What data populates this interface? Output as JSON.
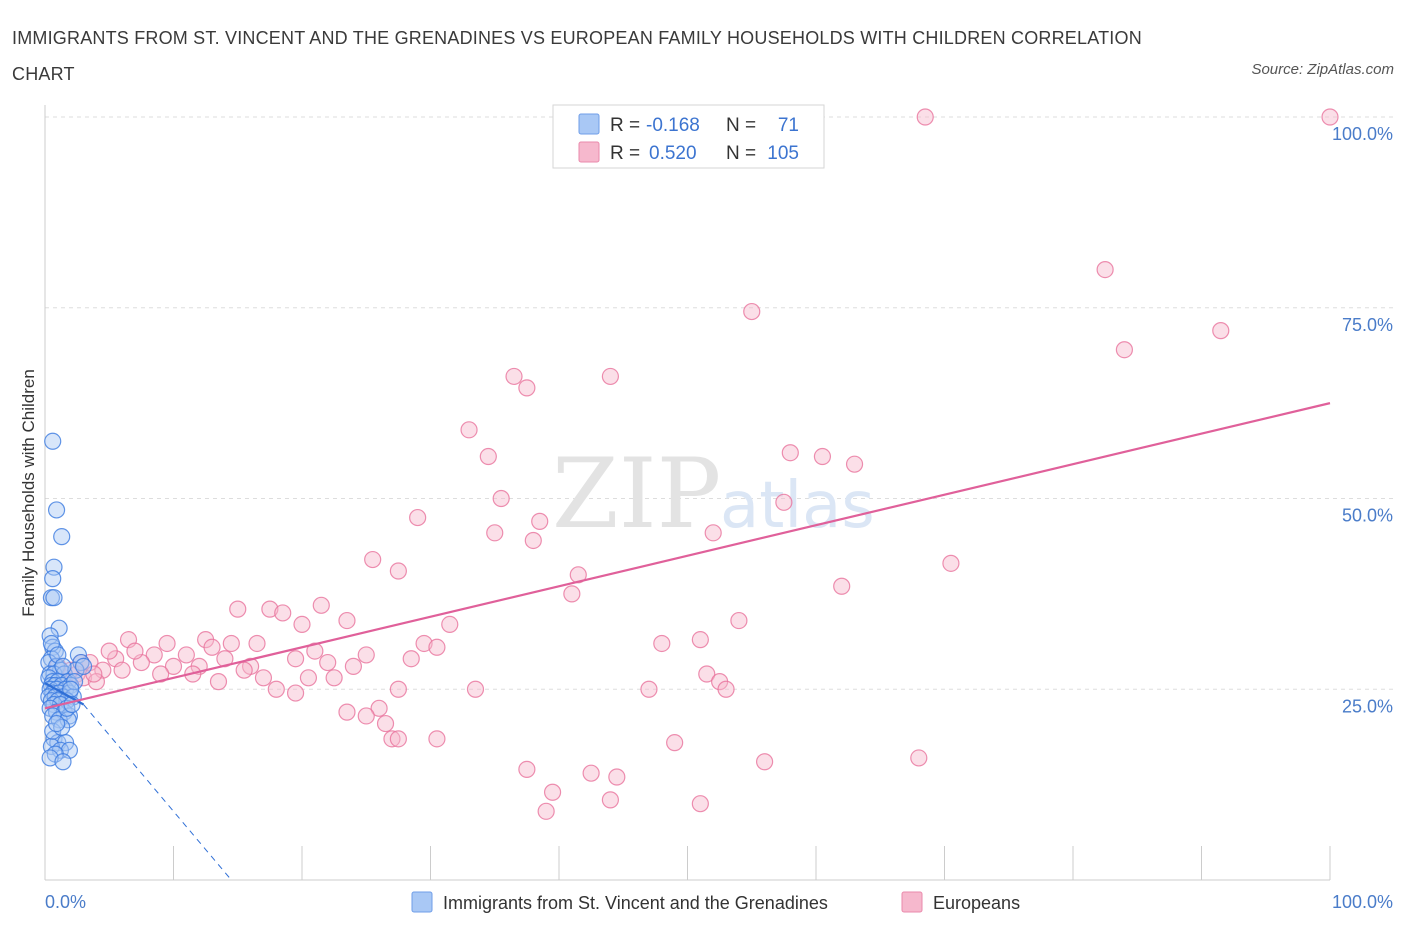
{
  "title": "IMMIGRANTS FROM ST. VINCENT AND THE GRENADINES VS EUROPEAN FAMILY HOUSEHOLDS WITH CHILDREN CORRELATION CHART",
  "source": "Source: ZipAtlas.com",
  "watermark": {
    "zip": "ZIP",
    "atlas": "atlas"
  },
  "colors": {
    "blue_fill": "#a9c8f5",
    "blue_stroke": "#3b7be0",
    "pink_fill": "#f6b8cd",
    "pink_stroke": "#e8739c",
    "blue_trend": "#2f6fd6",
    "pink_trend": "#e0609a",
    "tick_text": "#4a7cc9",
    "grid": "#dddddd"
  },
  "legend": {
    "r_label": "R =",
    "n_label": "N =",
    "rows": [
      {
        "series": "blue",
        "r": "-0.168",
        "n": "71"
      },
      {
        "series": "pink",
        "r": "0.520",
        "n": "105"
      }
    ]
  },
  "chart_data": {
    "type": "scatter",
    "title": "IMMIGRANTS FROM ST. VINCENT AND THE GRENADINES VS EUROPEAN FAMILY HOUSEHOLDS WITH CHILDREN CORRELATION CHART",
    "xlabel": "",
    "ylabel": "Family Households with Children",
    "xlim": [
      0,
      100
    ],
    "ylim": [
      0,
      100
    ],
    "x_tick_labels": {
      "left": "0.0%",
      "right": "100.0%"
    },
    "y_ticks": [
      {
        "value": 25,
        "label": "25.0%"
      },
      {
        "value": 50,
        "label": "50.0%"
      },
      {
        "value": 75,
        "label": "75.0%"
      },
      {
        "value": 100,
        "label": "100.0%"
      }
    ],
    "grid": true,
    "legend_position": "top-center",
    "series": [
      {
        "name": "Immigrants from St. Vincent and the Grenadines",
        "color": "blue",
        "points": [
          [
            0.6,
            57.5
          ],
          [
            0.9,
            48.5
          ],
          [
            1.3,
            45.0
          ],
          [
            0.7,
            41.0
          ],
          [
            0.6,
            39.5
          ],
          [
            0.5,
            37.0
          ],
          [
            0.7,
            37.0
          ],
          [
            1.1,
            33.0
          ],
          [
            0.4,
            32.0
          ],
          [
            0.6,
            30.5
          ],
          [
            0.8,
            30.0
          ],
          [
            0.5,
            29.0
          ],
          [
            0.3,
            28.5
          ],
          [
            0.9,
            28.0
          ],
          [
            1.2,
            27.5
          ],
          [
            0.4,
            27.0
          ],
          [
            0.7,
            27.0
          ],
          [
            1.5,
            27.0
          ],
          [
            0.3,
            26.5
          ],
          [
            0.6,
            26.0
          ],
          [
            1.0,
            26.0
          ],
          [
            1.8,
            26.0
          ],
          [
            0.5,
            25.5
          ],
          [
            0.8,
            25.5
          ],
          [
            1.3,
            25.5
          ],
          [
            2.0,
            25.5
          ],
          [
            0.4,
            25.0
          ],
          [
            0.9,
            25.0
          ],
          [
            1.6,
            25.0
          ],
          [
            0.6,
            24.5
          ],
          [
            1.1,
            24.5
          ],
          [
            1.9,
            24.5
          ],
          [
            0.3,
            24.0
          ],
          [
            0.8,
            24.0
          ],
          [
            1.4,
            24.0
          ],
          [
            2.2,
            24.0
          ],
          [
            0.5,
            23.5
          ],
          [
            1.0,
            23.5
          ],
          [
            1.7,
            23.5
          ],
          [
            0.7,
            23.0
          ],
          [
            1.2,
            23.0
          ],
          [
            0.4,
            22.5
          ],
          [
            0.9,
            22.0
          ],
          [
            1.5,
            22.0
          ],
          [
            0.6,
            21.5
          ],
          [
            1.9,
            21.5
          ],
          [
            1.1,
            21.0
          ],
          [
            1.8,
            21.0
          ],
          [
            2.6,
            29.5
          ],
          [
            2.8,
            28.5
          ],
          [
            2.4,
            27.5
          ],
          [
            3.0,
            28.0
          ],
          [
            2.3,
            26.0
          ],
          [
            2.0,
            25.0
          ],
          [
            0.7,
            18.5
          ],
          [
            1.0,
            18.0
          ],
          [
            1.6,
            18.0
          ],
          [
            0.5,
            17.5
          ],
          [
            1.2,
            17.0
          ],
          [
            1.9,
            17.0
          ],
          [
            0.8,
            16.5
          ],
          [
            0.4,
            16.0
          ],
          [
            1.4,
            15.5
          ],
          [
            0.6,
            19.5
          ],
          [
            1.3,
            20.0
          ],
          [
            0.9,
            20.5
          ],
          [
            1.7,
            22.5
          ],
          [
            2.1,
            23.0
          ],
          [
            0.5,
            31.0
          ],
          [
            1.0,
            29.5
          ],
          [
            1.4,
            28.0
          ]
        ]
      },
      {
        "name": "Europeans",
        "color": "pink",
        "points": [
          [
            68.5,
            100.0
          ],
          [
            100.0,
            100.0
          ],
          [
            82.5,
            80.0
          ],
          [
            91.5,
            72.0
          ],
          [
            84.0,
            69.5
          ],
          [
            55.0,
            74.5
          ],
          [
            36.5,
            66.0
          ],
          [
            44.0,
            66.0
          ],
          [
            37.5,
            64.5
          ],
          [
            33.0,
            59.0
          ],
          [
            34.5,
            55.5
          ],
          [
            58.0,
            56.0
          ],
          [
            60.5,
            55.5
          ],
          [
            63.0,
            54.5
          ],
          [
            35.5,
            50.0
          ],
          [
            57.5,
            49.5
          ],
          [
            29.0,
            47.5
          ],
          [
            38.5,
            47.0
          ],
          [
            35.0,
            45.5
          ],
          [
            52.0,
            45.5
          ],
          [
            38.0,
            44.5
          ],
          [
            25.5,
            42.0
          ],
          [
            70.5,
            41.5
          ],
          [
            27.5,
            40.5
          ],
          [
            41.5,
            40.0
          ],
          [
            62.0,
            38.5
          ],
          [
            41.0,
            37.5
          ],
          [
            15.0,
            35.5
          ],
          [
            17.5,
            35.5
          ],
          [
            18.5,
            35.0
          ],
          [
            21.5,
            36.0
          ],
          [
            23.5,
            34.0
          ],
          [
            54.0,
            34.0
          ],
          [
            20.0,
            33.5
          ],
          [
            31.5,
            33.5
          ],
          [
            6.5,
            31.5
          ],
          [
            12.5,
            31.5
          ],
          [
            14.5,
            31.0
          ],
          [
            16.5,
            31.0
          ],
          [
            29.5,
            31.0
          ],
          [
            30.5,
            30.5
          ],
          [
            48.0,
            31.0
          ],
          [
            51.0,
            31.5
          ],
          [
            13.0,
            30.5
          ],
          [
            21.0,
            30.0
          ],
          [
            8.5,
            29.5
          ],
          [
            11.0,
            29.5
          ],
          [
            14.0,
            29.0
          ],
          [
            19.5,
            29.0
          ],
          [
            25.0,
            29.5
          ],
          [
            28.5,
            29.0
          ],
          [
            3.5,
            28.5
          ],
          [
            5.5,
            29.0
          ],
          [
            7.5,
            28.5
          ],
          [
            10.0,
            28.0
          ],
          [
            12.0,
            28.0
          ],
          [
            16.0,
            28.0
          ],
          [
            22.0,
            28.5
          ],
          [
            24.0,
            28.0
          ],
          [
            4.5,
            27.5
          ],
          [
            6.0,
            27.5
          ],
          [
            9.0,
            27.0
          ],
          [
            11.5,
            27.0
          ],
          [
            15.5,
            27.5
          ],
          [
            17.0,
            26.5
          ],
          [
            20.5,
            26.5
          ],
          [
            2.5,
            27.0
          ],
          [
            3.0,
            26.5
          ],
          [
            4.0,
            26.0
          ],
          [
            1.5,
            26.5
          ],
          [
            2.0,
            27.5
          ],
          [
            1.0,
            28.0
          ],
          [
            2.8,
            28.5
          ],
          [
            3.8,
            27.0
          ],
          [
            1.8,
            26.0
          ],
          [
            51.5,
            27.0
          ],
          [
            52.5,
            26.0
          ],
          [
            53.0,
            25.0
          ],
          [
            47.0,
            25.0
          ],
          [
            22.5,
            26.5
          ],
          [
            27.5,
            25.0
          ],
          [
            23.5,
            22.0
          ],
          [
            26.0,
            22.5
          ],
          [
            18.0,
            25.0
          ],
          [
            25.0,
            21.5
          ],
          [
            26.5,
            20.5
          ],
          [
            27.0,
            18.5
          ],
          [
            27.5,
            18.5
          ],
          [
            30.5,
            18.5
          ],
          [
            49.0,
            18.0
          ],
          [
            37.5,
            14.5
          ],
          [
            42.5,
            14.0
          ],
          [
            44.5,
            13.5
          ],
          [
            56.0,
            15.5
          ],
          [
            68.0,
            16.0
          ],
          [
            39.5,
            11.5
          ],
          [
            44.0,
            10.5
          ],
          [
            51.0,
            10.0
          ],
          [
            39.0,
            9.0
          ],
          [
            33.5,
            25.0
          ],
          [
            9.5,
            31.0
          ],
          [
            19.5,
            24.5
          ],
          [
            5.0,
            30.0
          ],
          [
            7.0,
            30.0
          ],
          [
            13.5,
            26.0
          ]
        ]
      }
    ],
    "trend_lines": [
      {
        "series": "blue",
        "x": [
          0,
          3.0
        ],
        "y": [
          25.8,
          23.0
        ],
        "style": "solid"
      },
      {
        "series": "blue",
        "x": [
          3.0,
          14.5
        ],
        "y": [
          23.0,
          0.0
        ],
        "style": "dashed"
      },
      {
        "series": "pink",
        "x": [
          0,
          100
        ],
        "y": [
          22.5,
          62.5
        ],
        "style": "solid"
      }
    ]
  }
}
